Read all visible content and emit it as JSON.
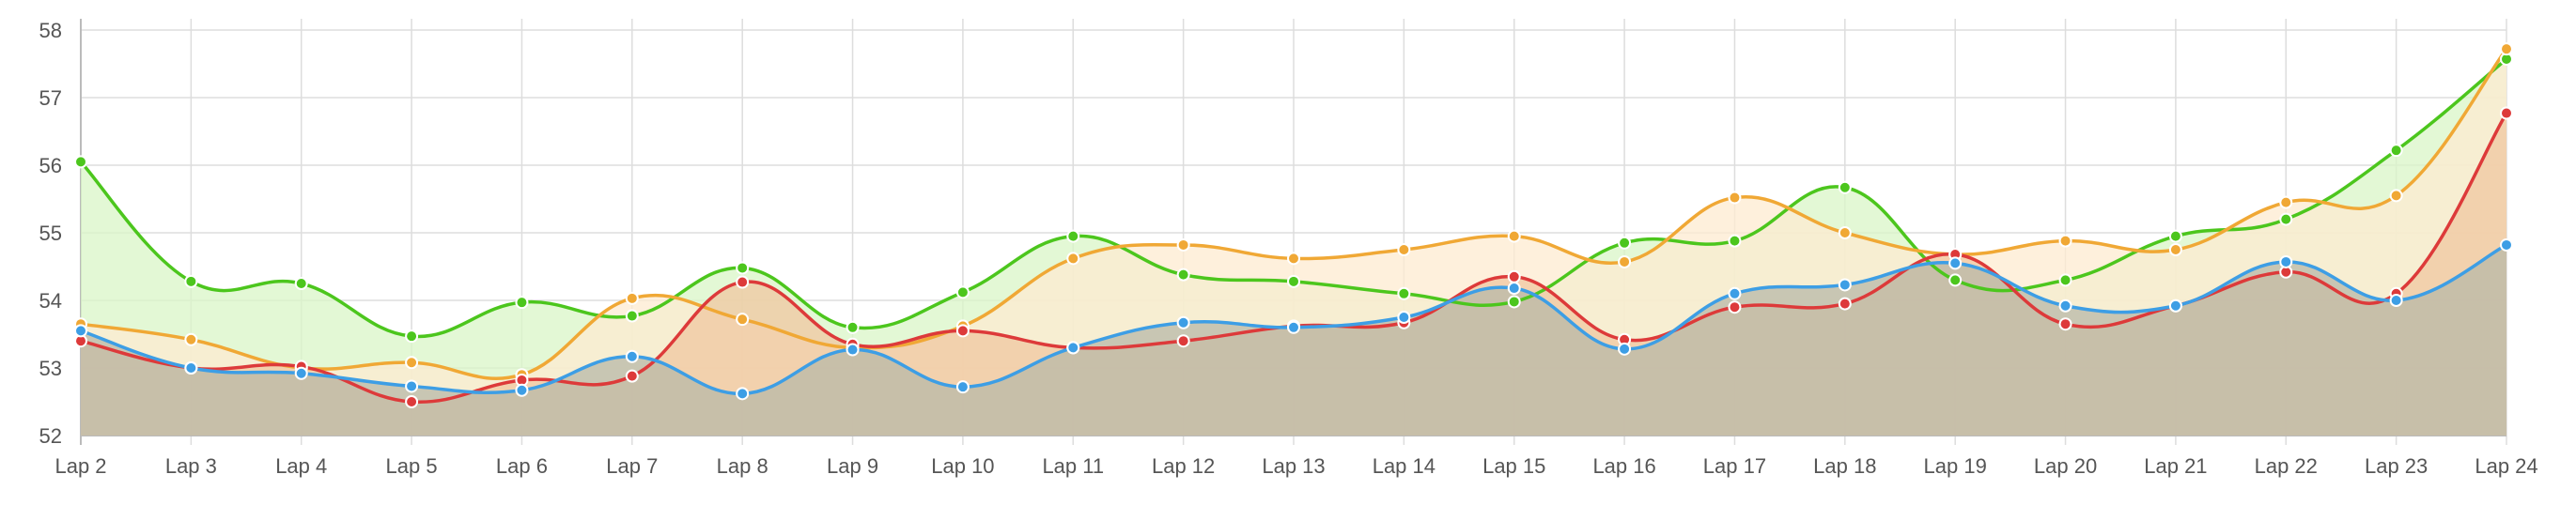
{
  "chart_data": {
    "type": "area",
    "categories": [
      "Lap 2",
      "Lap 3",
      "Lap 4",
      "Lap 5",
      "Lap 6",
      "Lap 7",
      "Lap 8",
      "Lap 9",
      "Lap 10",
      "Lap 11",
      "Lap 12",
      "Lap 13",
      "Lap 14",
      "Lap 15",
      "Lap 16",
      "Lap 17",
      "Lap 18",
      "Lap 19",
      "Lap 20",
      "Lap 21",
      "Lap 22",
      "Lap 23",
      "Lap 24"
    ],
    "ylim": [
      52,
      58
    ],
    "yticks": [
      52,
      53,
      54,
      55,
      56,
      57,
      58
    ],
    "grid": true,
    "legend": "none",
    "series": [
      {
        "color": "#4cc61d",
        "fill": "#d9f5c7",
        "values": [
          56.05,
          54.28,
          54.25,
          53.47,
          53.97,
          53.77,
          54.48,
          53.6,
          54.12,
          54.95,
          54.38,
          54.28,
          54.1,
          53.98,
          54.85,
          54.88,
          55.67,
          54.3,
          54.3,
          54.95,
          55.2,
          56.22,
          57.57
        ]
      },
      {
        "color": "#f0a835",
        "fill": "#fdebd0",
        "values": [
          53.65,
          53.42,
          53.0,
          53.08,
          52.9,
          54.03,
          53.72,
          53.3,
          53.62,
          54.62,
          54.82,
          54.62,
          54.75,
          54.95,
          54.57,
          55.52,
          55.0,
          54.68,
          54.88,
          54.75,
          55.45,
          55.55,
          57.72
        ]
      },
      {
        "color": "#dd3a3a",
        "fill": "#f0c7a0",
        "values": [
          53.4,
          53.0,
          53.02,
          52.5,
          52.82,
          52.88,
          54.27,
          53.35,
          53.55,
          53.3,
          53.4,
          53.62,
          53.67,
          54.35,
          53.42,
          53.9,
          53.95,
          54.68,
          53.65,
          53.92,
          54.42,
          54.1,
          56.77
        ]
      },
      {
        "color": "#3d9ee5",
        "fill": "#b8b8a8",
        "values": [
          53.55,
          53.0,
          52.92,
          52.73,
          52.67,
          53.17,
          52.62,
          53.27,
          52.72,
          53.3,
          53.67,
          53.6,
          53.75,
          54.18,
          53.28,
          54.1,
          54.23,
          54.55,
          53.92,
          53.92,
          54.57,
          54.0,
          54.82
        ]
      }
    ]
  }
}
